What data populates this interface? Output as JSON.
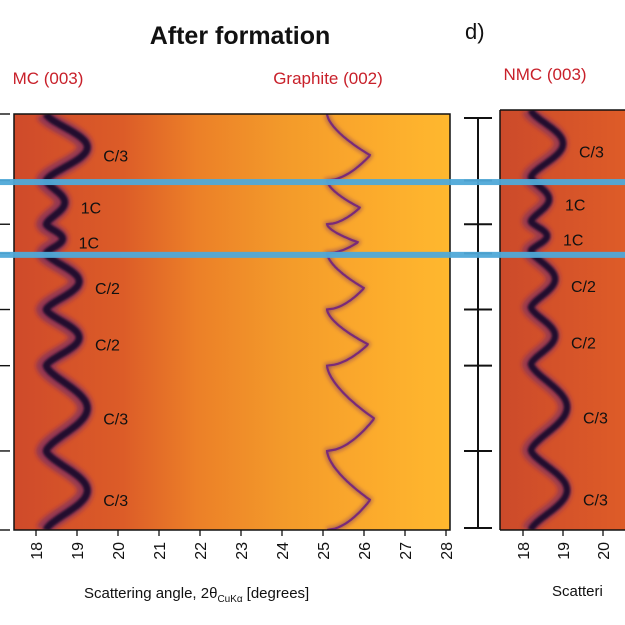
{
  "panel_letter": "d)",
  "colors": {
    "background_low": "#d04a28",
    "background_high": "#ffb52a",
    "peak_dark": "#20102e",
    "peak_mid": "#5c1f73",
    "peak_label": "#c8202a",
    "highlight_band": "#4fa9d8"
  },
  "chart_data": [
    {
      "type": "heatmap",
      "title": "After formation",
      "xlabel_main": "Scattering angle, 2θ",
      "xlabel_sub": "CuKα",
      "xlabel_unit": "[degrees]",
      "xlim": [
        17.6,
        28
      ],
      "x_ticks": [
        18,
        19,
        20,
        21,
        22,
        23,
        24,
        25,
        26,
        27,
        28
      ],
      "x_tick_labels": [
        "18",
        "19",
        "20",
        "21",
        "22",
        "23",
        "24",
        "25",
        "26",
        "27",
        "28"
      ],
      "ylim": [
        0,
        1
      ],
      "peak_labels": [
        {
          "text": "MC (003)",
          "x": 18.3
        },
        {
          "text": "Graphite (002)",
          "x": 25.4
        }
      ],
      "nmc_peak": {
        "base_x": 18.25,
        "amplitude_x": [
          1.0,
          0.45,
          0.4,
          0.8,
          0.8,
          1.0,
          1.0
        ]
      },
      "graphite_peak": {
        "base_x": 25.1,
        "amplitude_x": [
          1.05,
          0.8,
          0.75,
          0.9,
          1.0,
          1.15,
          1.05
        ]
      },
      "graphite_secondary_x": 23.9,
      "cycles": [
        {
          "label": "C/3",
          "start": 0.0,
          "end": 0.16
        },
        {
          "label": "1C",
          "start": 0.16,
          "end": 0.265
        },
        {
          "label": "1C",
          "start": 0.265,
          "end": 0.335
        },
        {
          "label": "C/2",
          "start": 0.335,
          "end": 0.47
        },
        {
          "label": "C/2",
          "start": 0.47,
          "end": 0.605
        },
        {
          "label": "C/3",
          "start": 0.605,
          "end": 0.81
        },
        {
          "label": "C/3",
          "start": 0.81,
          "end": 1.0
        }
      ],
      "cycle_ticks": [
        0.0,
        0.16,
        0.265,
        0.335,
        0.47,
        0.605,
        0.81,
        1.0
      ]
    },
    {
      "type": "heatmap",
      "title": "",
      "xlabel_main": "Scatteri",
      "xlim": [
        17.6,
        20.5
      ],
      "x_ticks": [
        18,
        19,
        20
      ],
      "x_tick_labels": [
        "18",
        "19",
        "20"
      ],
      "ylim": [
        0,
        1
      ],
      "peak_labels": [
        {
          "text": "NMC (003)",
          "x": 18.5
        }
      ],
      "nmc_peak": {
        "base_x": 18.2,
        "amplitude_x": [
          0.8,
          0.45,
          0.4,
          0.6,
          0.6,
          0.9,
          0.9
        ]
      },
      "cycles": [
        {
          "label": "C/3",
          "start": 0.0,
          "end": 0.16
        },
        {
          "label": "1C",
          "start": 0.16,
          "end": 0.265
        },
        {
          "label": "1C",
          "start": 0.265,
          "end": 0.335
        },
        {
          "label": "C/2",
          "start": 0.335,
          "end": 0.47
        },
        {
          "label": "C/2",
          "start": 0.47,
          "end": 0.605
        },
        {
          "label": "C/3",
          "start": 0.605,
          "end": 0.81
        },
        {
          "label": "C/3",
          "start": 0.81,
          "end": 1.0
        }
      ],
      "cycle_ticks": [
        0.0,
        0.16,
        0.265,
        0.335,
        0.47,
        0.605,
        0.81,
        1.0
      ]
    }
  ],
  "highlight_band": {
    "from": 0.16,
    "to": 0.335
  }
}
